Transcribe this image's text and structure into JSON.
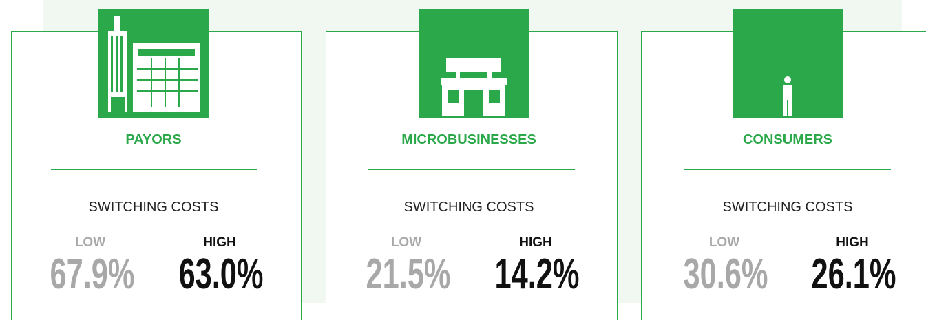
{
  "cards": [
    {
      "label": "PAYORS",
      "heading": "SWITCHING COSTS",
      "low_label": "LOW",
      "low_value": "67.9%",
      "high_label": "HIGH",
      "high_value": "63.0%"
    },
    {
      "label": "MICROBUSINESSES",
      "heading": "SWITCHING COSTS",
      "low_label": "LOW",
      "low_value": "21.5%",
      "high_label": "HIGH",
      "high_value": "14.2%"
    },
    {
      "label": "CONSUMERS",
      "heading": "SWITCHING COSTS",
      "low_label": "LOW",
      "low_value": "30.6%",
      "high_label": "HIGH",
      "high_value": "26.1%"
    }
  ]
}
